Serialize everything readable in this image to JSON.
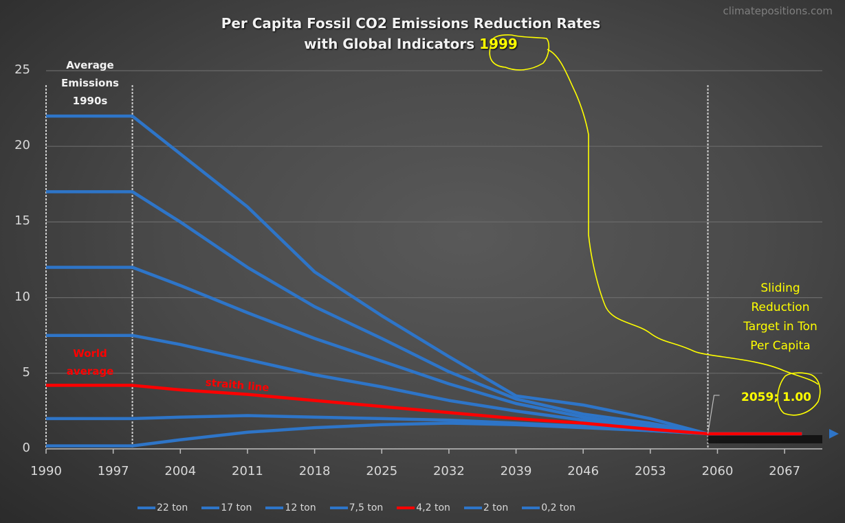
{
  "watermark": "climatepositions.com",
  "title_line1": "Per Capita Fossil CO2 Emissions Reduction Rates",
  "title_line2": "with Global Indicators",
  "title_year": "1999",
  "annotations": {
    "average_l1": "Average",
    "average_l2": "Emissions",
    "average_l3": "1990s",
    "world_l1": "World",
    "world_l2": "average",
    "straith": "straith line",
    "slide_l1": "Sliding",
    "slide_l2": "Reduction",
    "slide_l3": "Target in Ton",
    "slide_l4": "Per Capita",
    "target_label": "2059; 1.00"
  },
  "colors": {
    "series_blue": "#2e75c8",
    "world_red": "#ff0000",
    "highlight_yellow": "#ffff00"
  },
  "chart_data": {
    "type": "line",
    "title": "Per Capita Fossil CO2 Emissions Reduction Rates with Global Indicators 1999",
    "xlabel": "",
    "ylabel": "",
    "xlim": [
      1990,
      2070
    ],
    "ylim": [
      0,
      25
    ],
    "x_ticks": [
      "1990",
      "1997",
      "2004",
      "2011",
      "2018",
      "2025",
      "2032",
      "2039",
      "2046",
      "2053",
      "2060",
      "2067"
    ],
    "y_ticks": [
      "0",
      "5",
      "10",
      "15",
      "20",
      "25"
    ],
    "grid": "horizontal",
    "legend_position": "bottom",
    "vertical_markers": [
      1990,
      1999,
      2059
    ],
    "x": [
      1990,
      1999,
      2004,
      2011,
      2018,
      2025,
      2032,
      2039,
      2046,
      2053,
      2059,
      2070
    ],
    "series": [
      {
        "name": "22 ton",
        "color": "#2e75c8",
        "values": [
          22,
          22,
          19.5,
          16,
          11.7,
          8.8,
          6.1,
          3.5,
          2.9,
          2.0,
          1.0,
          1.0
        ]
      },
      {
        "name": "17 ton",
        "color": "#2e75c8",
        "values": [
          17,
          17,
          15,
          12,
          9.4,
          7.3,
          5.1,
          3.3,
          2.3,
          1.7,
          1.0,
          1.0
        ]
      },
      {
        "name": "12 ton",
        "color": "#2e75c8",
        "values": [
          12,
          12,
          10.8,
          9,
          7.3,
          5.8,
          4.3,
          3.0,
          2.1,
          1.5,
          1.0,
          1.0
        ]
      },
      {
        "name": "7,5 ton",
        "color": "#2e75c8",
        "values": [
          7.5,
          7.5,
          6.9,
          5.9,
          4.9,
          4.1,
          3.2,
          2.5,
          1.9,
          1.4,
          1.0,
          1.0
        ]
      },
      {
        "name": "4,2 ton",
        "color": "#ff0000",
        "values": [
          4.2,
          4.2,
          3.9,
          3.6,
          3.2,
          2.8,
          2.4,
          2.0,
          1.7,
          1.3,
          1.0,
          1.0
        ]
      },
      {
        "name": "2 ton",
        "color": "#2e75c8",
        "values": [
          2,
          2,
          2.1,
          2.2,
          2.1,
          2.0,
          1.9,
          1.7,
          1.5,
          1.2,
          1.0,
          1.0
        ]
      },
      {
        "name": "0,2 ton",
        "color": "#2e75c8",
        "values": [
          0.2,
          0.2,
          0.6,
          1.1,
          1.4,
          1.6,
          1.7,
          1.6,
          1.4,
          1.2,
          1.0,
          1.0
        ]
      }
    ],
    "data_label": {
      "x": 2059,
      "y": 1.0,
      "text": "2059; 1.00"
    }
  }
}
